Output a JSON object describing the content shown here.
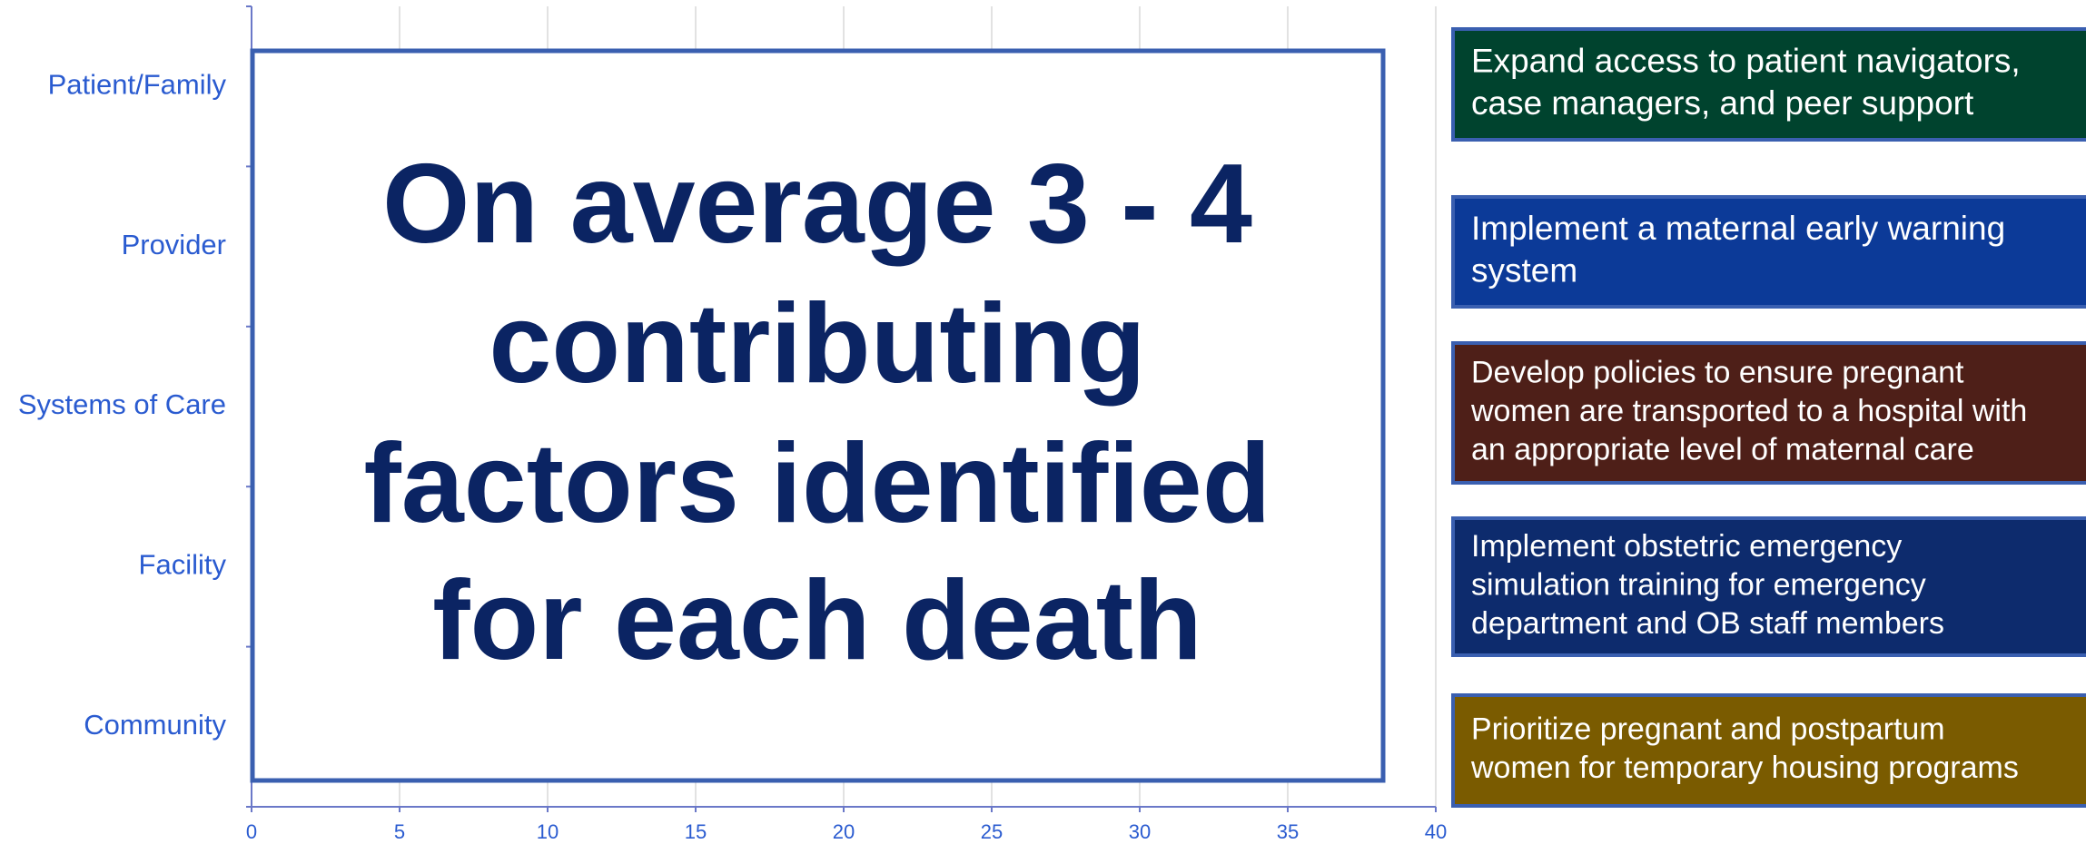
{
  "chart_data": {
    "type": "bar",
    "orientation": "horizontal",
    "categories": [
      "Patient/Family",
      "Provider",
      "Systems of Care",
      "Facility",
      "Community"
    ],
    "xlim": [
      0,
      40
    ],
    "xticks": [
      0,
      5,
      10,
      15,
      20,
      25,
      30,
      35,
      40
    ],
    "grid": true,
    "callout": [
      "On average 3 - 4",
      "contributing",
      "factors identified",
      "for each death"
    ],
    "recommendations": [
      {
        "lines": [
          "Expand access to patient navigators,",
          "case managers, and peer support"
        ],
        "color": "#00432e"
      },
      {
        "lines": [
          "Implement a maternal early warning",
          "system"
        ],
        "color": "#0c3a98"
      },
      {
        "lines": [
          "Develop policies to ensure pregnant",
          "women are transported to a hospital with",
          "an appropriate level of maternal care"
        ],
        "color": "#4e1f18"
      },
      {
        "lines": [
          "Implement obstetric emergency",
          "simulation training for emergency",
          "department and OB staff members"
        ],
        "color": "#0d2b6d"
      },
      {
        "lines": [
          "Prioritize pregnant and postpartum",
          "women for temporary housing programs"
        ],
        "color": "#7a5b00"
      }
    ]
  }
}
